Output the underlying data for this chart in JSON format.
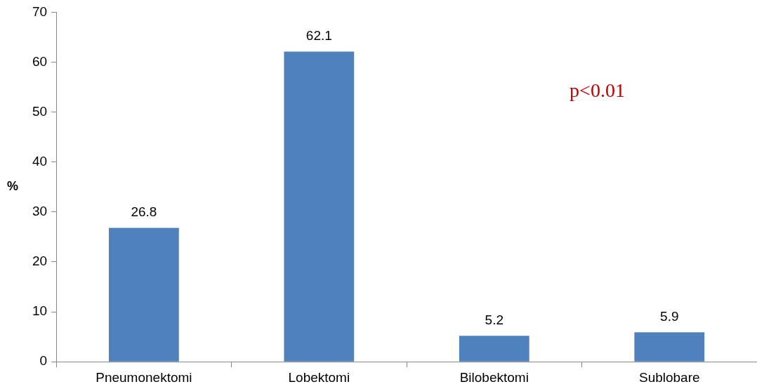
{
  "chart_data": {
    "type": "bar",
    "ylabel": "%",
    "categories": [
      "Pneumonektomi",
      "Lobektomi",
      "Bilobektomi",
      "Sublobare"
    ],
    "values": [
      26.8,
      62.1,
      5.2,
      5.9
    ],
    "color": "#4f81bd",
    "ylim": [
      0,
      70
    ],
    "yticks": [
      0,
      10,
      20,
      30,
      40,
      50,
      60,
      70
    ],
    "data_labels": true,
    "legend": false,
    "annotations": [
      "p<0.01"
    ]
  }
}
